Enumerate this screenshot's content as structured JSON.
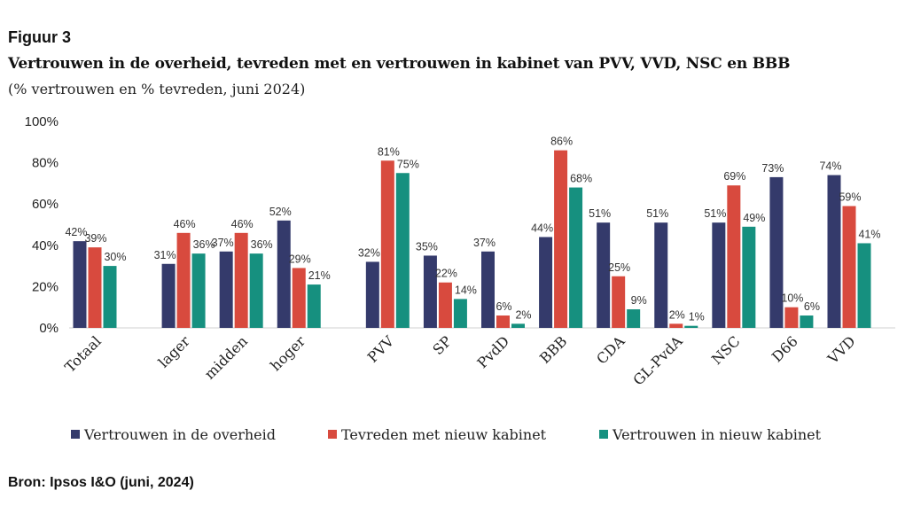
{
  "header": {
    "figure_label": "Figuur 3",
    "title": "Vertrouwen in de overheid, tevreden met en vertrouwen in kabinet van PVV, VVD, NSC en BBB",
    "subtitle": "(% vertrouwen en % tevreden, juni 2024)"
  },
  "footer": {
    "source": "Bron: Ipsos I&O (juni, 2024)"
  },
  "chart_data": {
    "type": "bar",
    "categories": [
      "Totaal",
      "lager",
      "midden",
      "hoger",
      "PVV",
      "SP",
      "PvdD",
      "BBB",
      "CDA",
      "GL-PvdA",
      "NSC",
      "D66",
      "VVD"
    ],
    "group_breaks_after": [
      "Totaal",
      "hoger"
    ],
    "series": [
      {
        "name": "Vertrouwen in de overheid",
        "color": "#343a6b",
        "values": [
          42,
          31,
          37,
          52,
          32,
          35,
          37,
          44,
          51,
          51,
          51,
          73,
          74
        ]
      },
      {
        "name": "Tevreden met nieuw kabinet",
        "color": "#d84a3e",
        "values": [
          39,
          46,
          46,
          29,
          81,
          22,
          6,
          86,
          25,
          2,
          69,
          10,
          59
        ]
      },
      {
        "name": "Vertrouwen in nieuw kabinet",
        "color": "#16907f",
        "values": [
          30,
          36,
          36,
          21,
          75,
          14,
          2,
          68,
          9,
          1,
          49,
          6,
          41
        ]
      }
    ],
    "data_labels": [
      [
        "42%",
        "31%",
        "37%",
        "52%",
        "32%",
        "35%",
        "37%",
        "44%",
        "51%",
        "51%",
        "51%",
        "73%",
        "74%"
      ],
      [
        "39%",
        "46%",
        "46%",
        "29%",
        "81%",
        "22%",
        "6%",
        "86%",
        "25%",
        "2%",
        "69%",
        "10%",
        "59%"
      ],
      [
        "30%",
        "36%",
        "36%",
        "21%",
        "75%",
        "14%",
        "2%",
        "68%",
        "9%",
        "1%",
        "49%",
        "6%",
        "41%"
      ]
    ],
    "y_ticks": [
      "0%",
      "20%",
      "40%",
      "60%",
      "80%",
      "100%"
    ],
    "ylim": [
      0,
      100
    ],
    "grid": false,
    "legend_position": "bottom"
  }
}
